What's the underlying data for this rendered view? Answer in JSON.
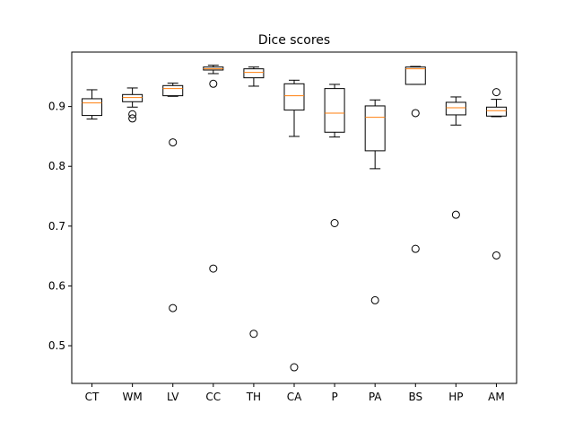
{
  "chart_data": {
    "type": "boxplot",
    "title": "Dice scores",
    "xlabel": "",
    "ylabel": "",
    "ylim": [
      0.437,
      0.991
    ],
    "yticks": [
      0.5,
      0.6,
      0.7,
      0.8,
      0.9
    ],
    "ytick_labels": [
      "0.5",
      "0.6",
      "0.7",
      "0.8",
      "0.9"
    ],
    "grid": false,
    "colors": {
      "box": "#000000",
      "median": "#ff7f0e",
      "flier": "#000000"
    },
    "categories": [
      "CT",
      "WM",
      "LV",
      "CC",
      "TH",
      "CA",
      "P",
      "PA",
      "BS",
      "HP",
      "AM"
    ],
    "boxes": [
      {
        "label": "CT",
        "whisker_low": 0.879,
        "q1": 0.885,
        "median": 0.906,
        "q3": 0.913,
        "whisker_high": 0.928,
        "fliers": []
      },
      {
        "label": "WM",
        "whisker_low": 0.899,
        "q1": 0.908,
        "median": 0.915,
        "q3": 0.92,
        "whisker_high": 0.931,
        "fliers": [
          0.88,
          0.887
        ]
      },
      {
        "label": "LV",
        "whisker_low": 0.917,
        "q1": 0.918,
        "median": 0.93,
        "q3": 0.935,
        "whisker_high": 0.939,
        "fliers": [
          0.84,
          0.563
        ]
      },
      {
        "label": "CC",
        "whisker_low": 0.955,
        "q1": 0.961,
        "median": 0.963,
        "q3": 0.966,
        "whisker_high": 0.969,
        "fliers": [
          0.938,
          0.629
        ]
      },
      {
        "label": "TH",
        "whisker_low": 0.934,
        "q1": 0.948,
        "median": 0.957,
        "q3": 0.963,
        "whisker_high": 0.966,
        "fliers": [
          0.52
        ]
      },
      {
        "label": "CA",
        "whisker_low": 0.85,
        "q1": 0.894,
        "median": 0.918,
        "q3": 0.938,
        "whisker_high": 0.944,
        "fliers": [
          0.464
        ]
      },
      {
        "label": "P",
        "whisker_low": 0.849,
        "q1": 0.857,
        "median": 0.889,
        "q3": 0.93,
        "whisker_high": 0.937,
        "fliers": [
          0.705
        ]
      },
      {
        "label": "PA",
        "whisker_low": 0.796,
        "q1": 0.826,
        "median": 0.882,
        "q3": 0.901,
        "whisker_high": 0.911,
        "fliers": [
          0.576
        ]
      },
      {
        "label": "BS",
        "whisker_low": 0.937,
        "q1": 0.937,
        "median": 0.963,
        "q3": 0.966,
        "whisker_high": 0.967,
        "fliers": [
          0.889,
          0.662
        ]
      },
      {
        "label": "HP",
        "whisker_low": 0.869,
        "q1": 0.886,
        "median": 0.898,
        "q3": 0.907,
        "whisker_high": 0.916,
        "fliers": [
          0.719
        ]
      },
      {
        "label": "AM",
        "whisker_low": 0.883,
        "q1": 0.884,
        "median": 0.893,
        "q3": 0.899,
        "whisker_high": 0.912,
        "fliers": [
          0.924,
          0.651
        ]
      }
    ]
  }
}
